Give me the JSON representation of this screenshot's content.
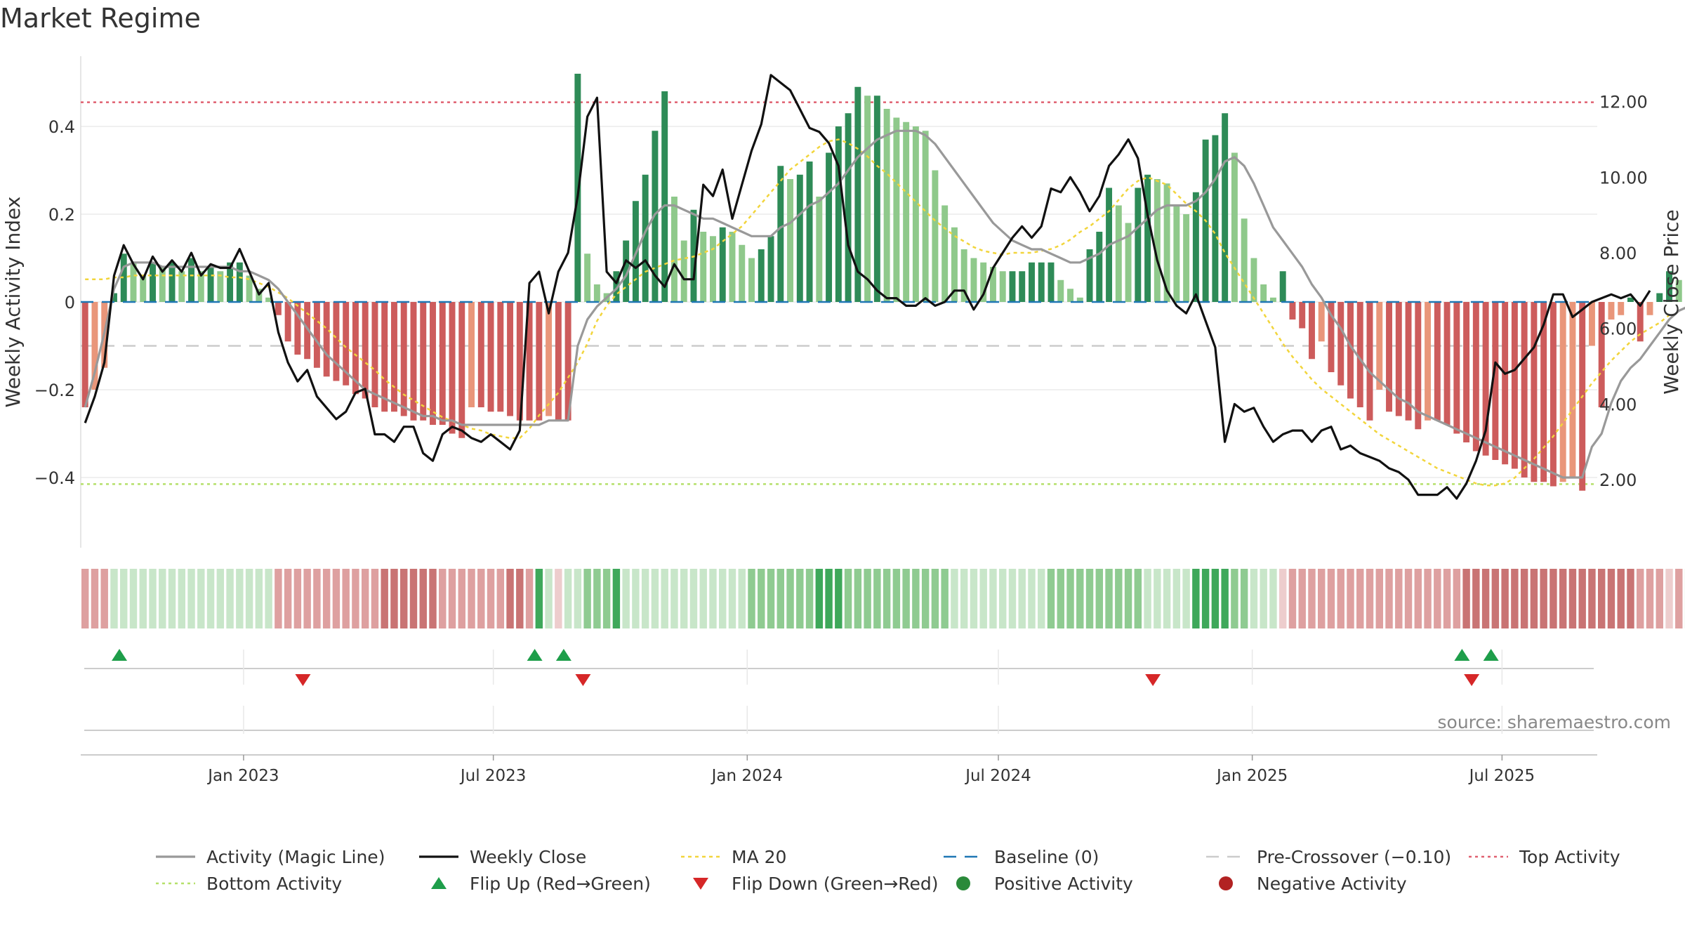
{
  "chart_data": {
    "type": "bar",
    "title": "Market Regime",
    "source": "source: sharemaestro.com",
    "ylabel_left": "Weekly Activity Index",
    "ylabel_right": "Weekly Close Price",
    "left_axis": {
      "range": [
        -0.56,
        0.56
      ],
      "ticks": [
        0.4,
        0.2,
        0,
        -0.2,
        -0.4
      ],
      "tick_labels": [
        "0.4",
        "0.2",
        "0",
        "−0.2",
        "−0.4"
      ]
    },
    "right_axis": {
      "range": [
        0.2,
        13.2
      ],
      "ticks": [
        12,
        10,
        8,
        6,
        4,
        2
      ],
      "tick_labels": [
        "12.00",
        "10.00",
        "8.00",
        "6.00",
        "4.00",
        "2.00"
      ]
    },
    "x_axis": {
      "start": "2022-09-05",
      "end": "2025-09-08",
      "ticks": [
        "2023-01-01",
        "2023-07-01",
        "2024-01-01",
        "2024-07-01",
        "2025-01-01",
        "2025-07-01"
      ],
      "tick_labels": [
        "Jan 2023",
        "Jul 2023",
        "Jan 2024",
        "Jul 2024",
        "Jan 2025",
        "Jul 2025"
      ]
    },
    "reference_lines": {
      "top_activity": 0.455,
      "bottom_activity": -0.415,
      "baseline": 0,
      "pre_crossover": -0.1
    },
    "colors": {
      "pos_strong": "#2e8b57",
      "pos_light": "#8fc98b",
      "neg_strong": "#cd5c5c",
      "neg_light": "#e9967a",
      "activity_line": "#999999",
      "close_line": "#111111",
      "ma20": "#f2d53c",
      "baseline": "#1f77b4",
      "pre_crossover": "#cccccc",
      "top_activity": "#e06070",
      "bottom_activity": "#b5e06a",
      "flip_up": "#1e9e4a",
      "flip_down": "#d62728"
    },
    "series": {
      "weekly_activity": [
        -0.24,
        -0.2,
        -0.15,
        0.02,
        0.11,
        0.09,
        0.06,
        0.09,
        0.08,
        0.09,
        0.07,
        0.1,
        0.07,
        0.08,
        0.07,
        0.09,
        0.09,
        0.06,
        0.03,
        0.01,
        -0.03,
        -0.09,
        -0.12,
        -0.13,
        -0.15,
        -0.17,
        -0.18,
        -0.19,
        -0.21,
        -0.22,
        -0.24,
        -0.25,
        -0.25,
        -0.26,
        -0.27,
        -0.27,
        -0.28,
        -0.28,
        -0.3,
        -0.31,
        -0.24,
        -0.24,
        -0.25,
        -0.25,
        -0.26,
        -0.27,
        -0.27,
        -0.27,
        -0.26,
        -0.27,
        -0.27,
        0.52,
        0.11,
        0.04,
        0.02,
        0.07,
        0.14,
        0.23,
        0.29,
        0.39,
        0.48,
        0.24,
        0.14,
        0.21,
        0.16,
        0.15,
        0.17,
        0.16,
        0.13,
        0.1,
        0.12,
        0.15,
        0.31,
        0.28,
        0.29,
        0.32,
        0.24,
        0.34,
        0.4,
        0.43,
        0.49,
        0.47,
        0.47,
        0.44,
        0.42,
        0.41,
        0.4,
        0.39,
        0.3,
        0.22,
        0.17,
        0.12,
        0.1,
        0.09,
        0.08,
        0.07,
        0.07,
        0.07,
        0.09,
        0.09,
        0.09,
        0.05,
        0.03,
        0.01,
        0.12,
        0.16,
        0.26,
        0.22,
        0.18,
        0.26,
        0.29,
        0.28,
        0.27,
        0.22,
        0.2,
        0.25,
        0.37,
        0.38,
        0.43,
        0.34,
        0.19,
        0.1,
        0.04,
        0.01,
        0.07,
        -0.04,
        -0.06,
        -0.13,
        -0.09,
        -0.16,
        -0.19,
        -0.22,
        -0.24,
        -0.27,
        -0.2,
        -0.25,
        -0.26,
        -0.27,
        -0.29,
        -0.27,
        -0.27,
        -0.28,
        -0.3,
        -0.32,
        -0.34,
        -0.35,
        -0.36,
        -0.37,
        -0.38,
        -0.4,
        -0.41,
        -0.41,
        -0.42,
        -0.41,
        -0.4,
        -0.43,
        -0.1,
        -0.24,
        -0.04,
        -0.03,
        0.01,
        -0.09,
        -0.03,
        0.02,
        0.07,
        0.05,
        0.03,
        0.02,
        0.01,
        0.05,
        0.03,
        0.05,
        0.02,
        0.12
      ],
      "activity_magic_line": [
        -0.24,
        -0.16,
        -0.07,
        0.03,
        0.08,
        0.09,
        0.09,
        0.09,
        0.08,
        0.08,
        0.08,
        0.08,
        0.08,
        0.08,
        0.08,
        0.08,
        0.07,
        0.07,
        0.06,
        0.05,
        0.03,
        0.0,
        -0.03,
        -0.06,
        -0.09,
        -0.12,
        -0.14,
        -0.16,
        -0.18,
        -0.2,
        -0.21,
        -0.22,
        -0.23,
        -0.24,
        -0.25,
        -0.26,
        -0.26,
        -0.27,
        -0.27,
        -0.28,
        -0.28,
        -0.28,
        -0.28,
        -0.28,
        -0.28,
        -0.28,
        -0.28,
        -0.28,
        -0.27,
        -0.27,
        -0.27,
        -0.1,
        -0.04,
        -0.01,
        0.01,
        0.03,
        0.06,
        0.11,
        0.16,
        0.2,
        0.22,
        0.22,
        0.21,
        0.2,
        0.19,
        0.19,
        0.18,
        0.17,
        0.16,
        0.15,
        0.15,
        0.15,
        0.17,
        0.18,
        0.2,
        0.22,
        0.23,
        0.25,
        0.27,
        0.3,
        0.33,
        0.35,
        0.37,
        0.38,
        0.39,
        0.39,
        0.39,
        0.38,
        0.36,
        0.33,
        0.3,
        0.27,
        0.24,
        0.21,
        0.18,
        0.16,
        0.14,
        0.13,
        0.12,
        0.12,
        0.11,
        0.1,
        0.09,
        0.09,
        0.1,
        0.11,
        0.13,
        0.14,
        0.15,
        0.17,
        0.19,
        0.21,
        0.22,
        0.22,
        0.22,
        0.23,
        0.25,
        0.28,
        0.32,
        0.33,
        0.31,
        0.27,
        0.22,
        0.17,
        0.14,
        0.11,
        0.08,
        0.04,
        0.01,
        -0.03,
        -0.06,
        -0.1,
        -0.13,
        -0.16,
        -0.18,
        -0.2,
        -0.22,
        -0.23,
        -0.25,
        -0.26,
        -0.27,
        -0.28,
        -0.29,
        -0.3,
        -0.31,
        -0.32,
        -0.33,
        -0.34,
        -0.35,
        -0.36,
        -0.37,
        -0.38,
        -0.39,
        -0.4,
        -0.4,
        -0.4,
        -0.33,
        -0.3,
        -0.23,
        -0.18,
        -0.15,
        -0.13,
        -0.1,
        -0.07,
        -0.04,
        -0.02,
        -0.01,
        0.0,
        0.0,
        0.01,
        0.01,
        0.02,
        0.02,
        0.03
      ],
      "weekly_close": [
        3.5,
        4.2,
        5.1,
        7.4,
        8.2,
        7.7,
        7.3,
        7.9,
        7.5,
        7.8,
        7.5,
        8.0,
        7.4,
        7.7,
        7.6,
        7.6,
        8.1,
        7.5,
        6.9,
        7.2,
        5.9,
        5.1,
        4.6,
        4.9,
        4.2,
        3.9,
        3.6,
        3.8,
        4.3,
        4.4,
        3.2,
        3.2,
        3.0,
        3.4,
        3.4,
        2.7,
        2.5,
        3.2,
        3.4,
        3.3,
        3.1,
        3.0,
        3.2,
        3.0,
        2.8,
        3.3,
        7.2,
        7.5,
        6.4,
        7.5,
        8.0,
        9.5,
        11.6,
        12.1,
        7.5,
        7.2,
        7.8,
        7.6,
        7.8,
        7.4,
        7.1,
        7.7,
        7.3,
        7.3,
        9.8,
        9.5,
        10.2,
        8.9,
        9.8,
        10.7,
        11.4,
        12.7,
        12.5,
        12.3,
        11.8,
        11.3,
        11.2,
        10.9,
        10.3,
        8.2,
        7.5,
        7.3,
        7.0,
        6.8,
        6.8,
        6.6,
        6.6,
        6.8,
        6.6,
        6.7,
        7.0,
        7.0,
        6.5,
        6.9,
        7.6,
        8.0,
        8.4,
        8.7,
        8.4,
        8.7,
        9.7,
        9.6,
        10.0,
        9.6,
        9.1,
        9.5,
        10.3,
        10.6,
        11.0,
        10.5,
        9.0,
        7.8,
        7.0,
        6.6,
        6.4,
        6.9,
        6.2,
        5.5,
        3.0,
        4.0,
        3.8,
        3.9,
        3.4,
        3.0,
        3.2,
        3.3,
        3.3,
        3.0,
        3.3,
        3.4,
        2.8,
        2.9,
        2.7,
        2.6,
        2.5,
        2.3,
        2.2,
        2.0,
        1.6,
        1.6,
        1.6,
        1.8,
        1.5,
        1.9,
        2.5,
        3.3,
        5.1,
        4.8,
        4.9,
        5.2,
        5.5,
        6.1,
        6.9,
        6.9,
        6.3,
        6.5,
        6.7,
        6.8,
        6.9,
        6.8,
        6.9,
        6.6,
        7.0
      ],
      "ma20": [
        7.3,
        7.3,
        7.3,
        7.35,
        7.35,
        7.4,
        7.4,
        7.4,
        7.4,
        7.4,
        7.4,
        7.4,
        7.4,
        7.4,
        7.4,
        7.35,
        7.35,
        7.3,
        7.2,
        7.1,
        6.95,
        6.8,
        6.6,
        6.4,
        6.2,
        6.0,
        5.75,
        5.5,
        5.3,
        5.1,
        4.9,
        4.65,
        4.45,
        4.25,
        4.1,
        3.95,
        3.8,
        3.65,
        3.55,
        3.45,
        3.35,
        3.3,
        3.2,
        3.15,
        3.1,
        3.1,
        3.35,
        3.7,
        4.0,
        4.3,
        4.7,
        5.1,
        5.6,
        6.2,
        6.6,
        6.9,
        7.1,
        7.3,
        7.5,
        7.6,
        7.7,
        7.8,
        7.85,
        7.9,
        8.0,
        8.1,
        8.3,
        8.5,
        8.7,
        9.0,
        9.3,
        9.6,
        9.9,
        10.2,
        10.4,
        10.6,
        10.8,
        10.95,
        11.0,
        10.9,
        10.75,
        10.55,
        10.3,
        10.1,
        9.85,
        9.6,
        9.35,
        9.1,
        8.85,
        8.65,
        8.45,
        8.3,
        8.15,
        8.05,
        8.0,
        7.95,
        8.0,
        8.0,
        8.0,
        8.05,
        8.1,
        8.2,
        8.35,
        8.55,
        8.7,
        8.9,
        9.1,
        9.4,
        9.7,
        9.9,
        10.0,
        9.9,
        9.8,
        9.55,
        9.3,
        9.1,
        8.85,
        8.5,
        8.0,
        7.6,
        7.2,
        6.8,
        6.4,
        6.0,
        5.6,
        5.25,
        4.95,
        4.65,
        4.4,
        4.2,
        4.0,
        3.8,
        3.6,
        3.4,
        3.2,
        3.05,
        2.9,
        2.75,
        2.6,
        2.45,
        2.3,
        2.2,
        2.1,
        2.0,
        1.9,
        1.85,
        1.85,
        1.9,
        2.05,
        2.3,
        2.55,
        2.85,
        3.15,
        3.5,
        3.85,
        4.2,
        4.55,
        4.85,
        5.15,
        5.4,
        5.65,
        5.85,
        6.0,
        6.15,
        6.35
      ]
    },
    "regime_strip": [
      -1,
      -1,
      -1,
      1,
      1,
      1,
      1,
      1,
      1,
      1,
      1,
      1,
      1,
      1,
      1,
      1,
      1,
      1,
      1,
      1,
      -1,
      -1,
      -1,
      -1,
      -1,
      -1,
      -1,
      -1,
      -1,
      -1,
      -1,
      -2,
      -2,
      -2,
      -2,
      -2,
      -2,
      -1,
      -1,
      -1,
      -1,
      -1,
      -1,
      -1,
      -2,
      -2,
      -1,
      3,
      1,
      0,
      1,
      1,
      2,
      2,
      2,
      3,
      1,
      1,
      1,
      1,
      1,
      1,
      1,
      1,
      1,
      1,
      1,
      1,
      1,
      2,
      2,
      2,
      2,
      2,
      2,
      2,
      3,
      3,
      3,
      2,
      2,
      2,
      2,
      2,
      2,
      2,
      2,
      2,
      2,
      2,
      1,
      1,
      1,
      1,
      1,
      1,
      1,
      1,
      1,
      1,
      2,
      2,
      2,
      2,
      2,
      2,
      2,
      2,
      2,
      2,
      1,
      1,
      1,
      1,
      1,
      3,
      3,
      3,
      3,
      2,
      2,
      1,
      1,
      1,
      0,
      -1,
      -1,
      -1,
      -1,
      -1,
      -1,
      -1,
      -1,
      -1,
      -1,
      -1,
      -1,
      -1,
      -1,
      -1,
      -1,
      -1,
      -1,
      -2,
      -2,
      -2,
      -2,
      -2,
      -2,
      -2,
      -2,
      -2,
      -2,
      -2,
      -2,
      -2,
      -2,
      -2,
      -2,
      -2,
      -2,
      -1,
      -1,
      -1,
      0,
      -1,
      1,
      1,
      1,
      1,
      1,
      1,
      1,
      1,
      1,
      1,
      1,
      1,
      1,
      1
    ],
    "flip_up": [
      "2022-10-03",
      "2023-07-31",
      "2023-08-21",
      "2025-06-02",
      "2025-06-23"
    ],
    "flip_down": [
      "2023-02-13",
      "2023-09-04",
      "2024-10-21",
      "2025-06-09"
    ],
    "legend": [
      "Activity (Magic Line)",
      "Weekly Close",
      "MA 20",
      "Baseline (0)",
      "Pre-Crossover (−0.10)",
      "Top Activity",
      "Bottom Activity",
      "Flip Up (Red→Green)",
      "Flip Down (Green→Red)",
      "Positive Activity",
      "Negative Activity"
    ]
  }
}
